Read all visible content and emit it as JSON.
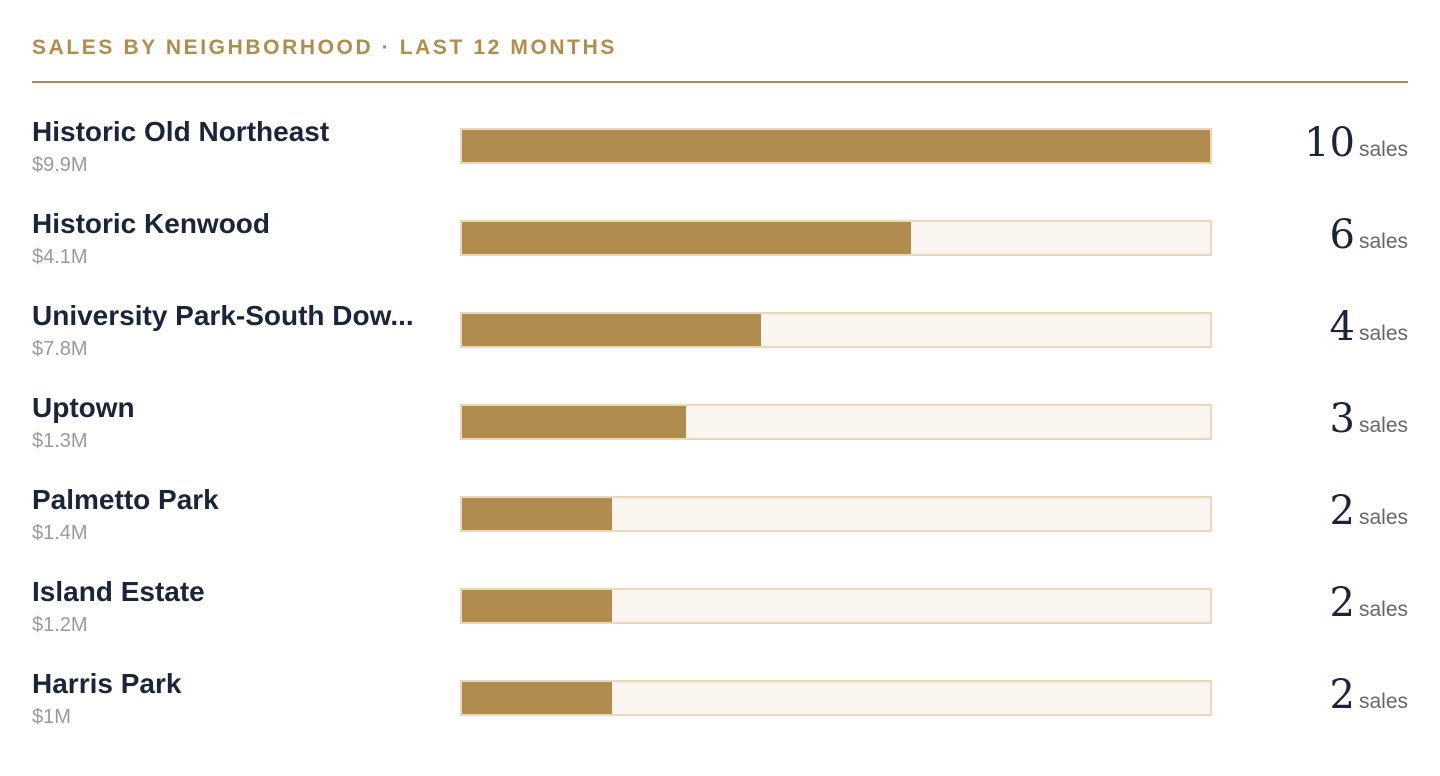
{
  "title": "SALES BY NEIGHBORHOOD · LAST 12 MONTHS",
  "colors": {
    "accent": "#b08d4f",
    "track": "#faf6ef",
    "track_border": "#e9d8bb",
    "name_text": "#1b2438",
    "muted_text": "#9a9a9a"
  },
  "chart_data": {
    "type": "bar",
    "orientation": "horizontal",
    "title": "SALES BY NEIGHBORHOOD · LAST 12 MONTHS",
    "xlim": [
      0,
      10
    ],
    "unit_label": "sales",
    "categories": [
      "Historic Old Northeast",
      "Historic Kenwood",
      "University Park-South Dow...",
      "Uptown",
      "Palmetto Park",
      "Island Estate",
      "Harris Park"
    ],
    "values": [
      10,
      6,
      4,
      3,
      2,
      2,
      2
    ],
    "volumes": [
      "$9.9M",
      "$4.1M",
      "$7.8M",
      "$1.3M",
      "$1.4M",
      "$1.2M",
      "$1M"
    ],
    "rows": [
      {
        "name": "Historic Old Northeast",
        "volume": "$9.9M",
        "count": "10",
        "unit": "sales",
        "value": 10
      },
      {
        "name": "Historic Kenwood",
        "volume": "$4.1M",
        "count": "6",
        "unit": "sales",
        "value": 6
      },
      {
        "name": "University Park-South Dow...",
        "volume": "$7.8M",
        "count": "4",
        "unit": "sales",
        "value": 4
      },
      {
        "name": "Uptown",
        "volume": "$1.3M",
        "count": "3",
        "unit": "sales",
        "value": 3
      },
      {
        "name": "Palmetto Park",
        "volume": "$1.4M",
        "count": "2",
        "unit": "sales",
        "value": 2
      },
      {
        "name": "Island Estate",
        "volume": "$1.2M",
        "count": "2",
        "unit": "sales",
        "value": 2
      },
      {
        "name": "Harris Park",
        "volume": "$1M",
        "count": "2",
        "unit": "sales",
        "value": 2
      }
    ]
  }
}
